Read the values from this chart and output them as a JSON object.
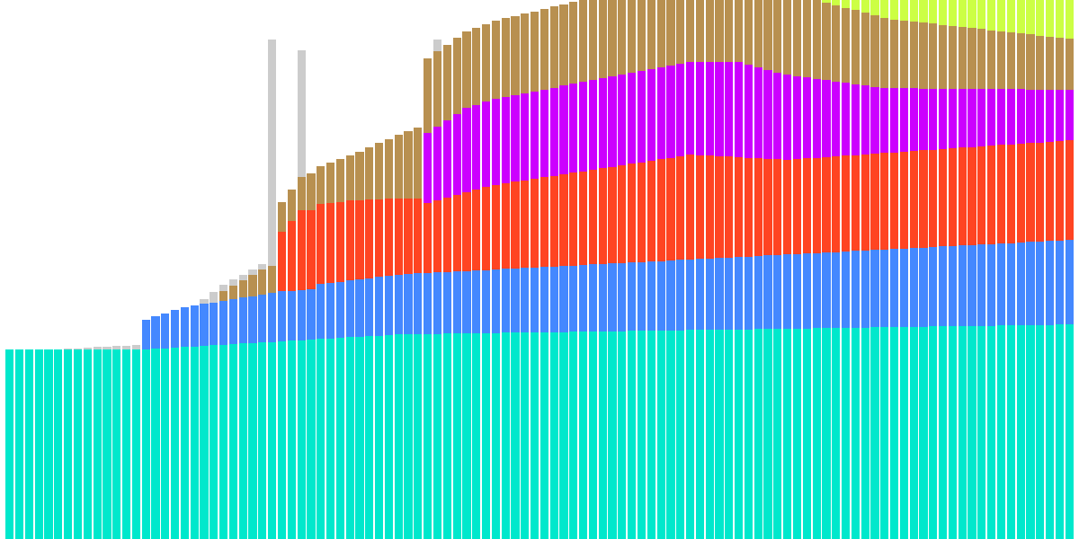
{
  "n_bars": 110,
  "colors": {
    "cyan": "#00E8CC",
    "blue": "#4488FF",
    "orange": "#FF4422",
    "magenta": "#CC00FF",
    "brown": "#B89050",
    "lime": "#CCFF44",
    "gray": "#CCCCCC"
  },
  "background": "#FFFFFF",
  "bar_width": 0.85,
  "figsize": [
    12,
    6
  ],
  "dpi": 100
}
